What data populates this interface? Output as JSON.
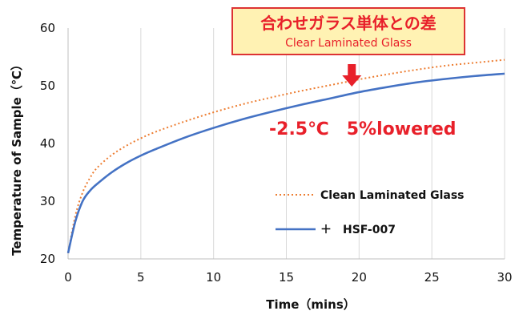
{
  "chart_data": {
    "type": "line",
    "xlabel": "Time（mins）",
    "ylabel": "Temperature of Sample（℃）",
    "xlim": [
      0,
      30
    ],
    "ylim": [
      20,
      60
    ],
    "xticks": [
      0,
      5,
      10,
      15,
      20,
      25,
      30
    ],
    "yticks": [
      20,
      30,
      40,
      50,
      60
    ],
    "grid": "vertical",
    "legend_position": "bottom-right",
    "series": [
      {
        "name": "Clean Laminated Glass",
        "color": "#ED7D31",
        "style": "dotted",
        "x": [
          0,
          0.5,
          1,
          1.5,
          2,
          3,
          4,
          5,
          6,
          8,
          10,
          12,
          14,
          16,
          18,
          20,
          22,
          24,
          26,
          28,
          30
        ],
        "y": [
          21,
          27.5,
          31.5,
          34,
          35.8,
          38,
          39.6,
          40.9,
          42.0,
          43.8,
          45.4,
          46.8,
          48.0,
          49.1,
          50.1,
          51.1,
          52.0,
          52.8,
          53.5,
          54.0,
          54.5
        ]
      },
      {
        "name": "＋　HSF-007",
        "color": "#4472C4",
        "style": "solid",
        "x": [
          0,
          0.5,
          1,
          1.5,
          2,
          3,
          4,
          5,
          6,
          8,
          10,
          12,
          14,
          16,
          18,
          20,
          22,
          24,
          26,
          28,
          30
        ],
        "y": [
          21,
          26.5,
          30,
          31.8,
          33.0,
          35.0,
          36.6,
          37.9,
          39.0,
          41.0,
          42.7,
          44.2,
          45.5,
          46.7,
          47.8,
          48.9,
          49.8,
          50.6,
          51.2,
          51.7,
          52.1
        ]
      }
    ],
    "annotations": {
      "box_title": "合わせガラス単体との差",
      "box_subtitle": "Clear Laminated Glass",
      "difference_text": "-2.5℃　5%lowered",
      "arrow_at_x": 19.5
    }
  }
}
